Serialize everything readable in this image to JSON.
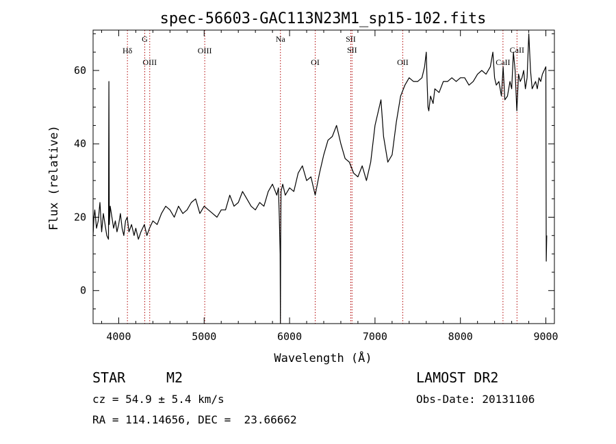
{
  "chart_data": {
    "type": "line",
    "title": "spec-56603-GAC113N23M1_sp15-102.fits",
    "xlabel": "Wavelength (Å)",
    "ylabel": "Flux (relative)",
    "xlim": [
      3700,
      9100
    ],
    "ylim": [
      -9,
      71
    ],
    "xticks": [
      4000,
      5000,
      6000,
      7000,
      8000,
      9000
    ],
    "yticks": [
      0,
      20,
      40,
      60
    ],
    "grid": false,
    "series": [
      {
        "x": [
          3700,
          3710,
          3720,
          3740,
          3760,
          3780,
          3800,
          3820,
          3840,
          3860,
          3880,
          3885,
          3890,
          3900,
          3920,
          3940,
          3960,
          3980,
          4000,
          4020,
          4040,
          4060,
          4080,
          4100,
          4120,
          4150,
          4180,
          4200,
          4230,
          4260,
          4300,
          4330,
          4360,
          4400,
          4450,
          4500,
          4550,
          4600,
          4650,
          4700,
          4750,
          4800,
          4850,
          4900,
          4950,
          5000,
          5050,
          5100,
          5150,
          5200,
          5250,
          5300,
          5350,
          5400,
          5450,
          5500,
          5550,
          5600,
          5650,
          5700,
          5750,
          5800,
          5850,
          5870,
          5880,
          5890,
          5893,
          5896,
          5900,
          5910,
          5920,
          5950,
          6000,
          6050,
          6100,
          6150,
          6200,
          6250,
          6300,
          6350,
          6400,
          6450,
          6500,
          6550,
          6600,
          6650,
          6700,
          6750,
          6800,
          6850,
          6900,
          6950,
          7000,
          7050,
          7070,
          7100,
          7150,
          7200,
          7250,
          7300,
          7350,
          7400,
          7450,
          7500,
          7550,
          7580,
          7600,
          7610,
          7620,
          7630,
          7650,
          7680,
          7700,
          7750,
          7800,
          7850,
          7900,
          7950,
          8000,
          8050,
          8100,
          8150,
          8200,
          8250,
          8300,
          8350,
          8380,
          8400,
          8420,
          8450,
          8480,
          8500,
          8520,
          8550,
          8580,
          8600,
          8620,
          8640,
          8660,
          8680,
          8700,
          8720,
          8740,
          8760,
          8780,
          8800,
          8820,
          8840,
          8860,
          8880,
          8900,
          8920,
          8940,
          8960,
          8980,
          9000,
          9005,
          9010
        ],
        "y": [
          15,
          20,
          22,
          17,
          19,
          24,
          16,
          21,
          18,
          15,
          14,
          57,
          18,
          23,
          20,
          17,
          19,
          16,
          18,
          21,
          17,
          15,
          19,
          20,
          16,
          18,
          15,
          17,
          14,
          16,
          18,
          15,
          17,
          19,
          18,
          21,
          23,
          22,
          20,
          23,
          21,
          22,
          24,
          25,
          21,
          23,
          22,
          21,
          20,
          22,
          22,
          26,
          23,
          24,
          27,
          25,
          23,
          22,
          24,
          23,
          27,
          29,
          26,
          28,
          20,
          10,
          -9,
          15,
          27,
          28,
          29,
          26,
          28,
          27,
          32,
          34,
          30,
          31,
          26,
          32,
          37,
          41,
          42,
          45,
          40,
          36,
          35,
          32,
          31,
          34,
          30,
          35,
          45,
          50,
          52,
          42,
          35,
          37,
          46,
          53,
          56,
          58,
          57,
          57,
          58,
          61,
          65,
          57,
          50,
          49,
          53,
          51,
          55,
          54,
          57,
          57,
          58,
          57,
          58,
          58,
          56,
          57,
          59,
          60,
          59,
          61,
          65,
          58,
          56,
          57,
          53,
          61,
          52,
          53,
          57,
          55,
          65,
          60,
          49,
          59,
          57,
          58,
          60,
          55,
          58,
          70,
          60,
          55,
          56,
          57,
          55,
          58,
          57,
          59,
          60,
          61,
          8,
          15
        ]
      }
    ],
    "lines": [
      {
        "label": "Hδ",
        "x": 4102
      },
      {
        "label": "G",
        "x": 4305
      },
      {
        "label": "OIII",
        "x": 4363
      },
      {
        "label": "OIII",
        "x": 5007
      },
      {
        "label": "Na",
        "x": 5893
      },
      {
        "label": "OI",
        "x": 6300
      },
      {
        "label": "SII",
        "x": 6716
      },
      {
        "label": "SII",
        "x": 6731
      },
      {
        "label": "OII",
        "x": 7325
      },
      {
        "label": "CaII",
        "x": 8498
      },
      {
        "label": "CaII",
        "x": 8662
      }
    ]
  },
  "info": {
    "star": "STAR",
    "subclass": "M2",
    "survey": "LAMOST DR2",
    "cz": "cz = 54.9 ± 5.4 km/s",
    "obsdate": "Obs-Date: 20131106",
    "radec": "RA = 114.14656, DEC =  23.66662"
  },
  "colors": {
    "line_marker": "#b00000",
    "spectrum": "#000000"
  }
}
